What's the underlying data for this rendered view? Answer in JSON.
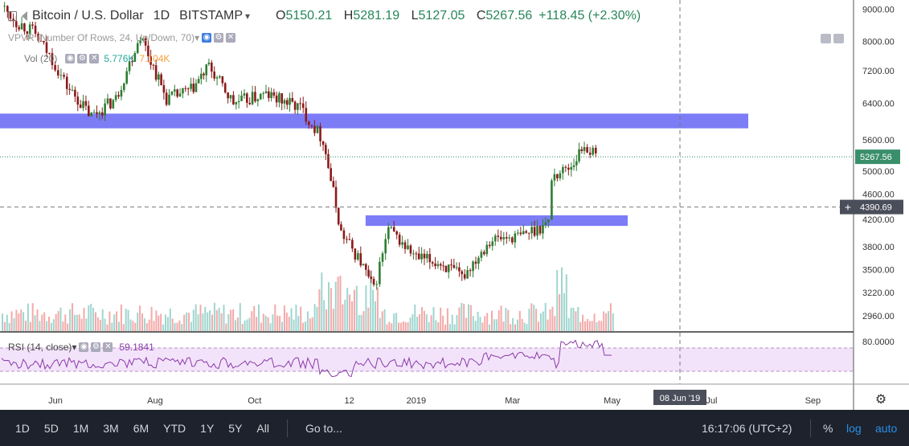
{
  "legend": {
    "symbol": "Bitcoin / U.S. Dollar",
    "interval": "1D",
    "exchange": "BITSTAMP",
    "open_label": "O",
    "open": "5150.21",
    "high_label": "H",
    "high": "5281.19",
    "low_label": "L",
    "low": "5127.05",
    "close_label": "C",
    "close": "5267.56",
    "change": "+118.45 (+2.30%)"
  },
  "indicators": {
    "vpvr_label": "VPVR (Number Of Rows, 24, Up/Down, 70)",
    "vol_label": "Vol (20)",
    "vol_values": "5.776K",
    "vol_ma": "7.104K"
  },
  "rsi": {
    "label": "RSI (14, close)",
    "value": "59.1841"
  },
  "colors": {
    "up": "#26a69a",
    "down": "#ef5350",
    "candle_up": "#2e7d32",
    "candle_down": "#8b1a1a",
    "zone": "#6e6ef5",
    "rsi_line": "#8a3aa9",
    "rsi_band": "#f3e3fa"
  },
  "chart_data": {
    "type": "candlestick",
    "price_axis_ticks": [
      "9000.00",
      "8000.00",
      "7200.00",
      "6400.00",
      "5600.00",
      "5000.00",
      "4600.00",
      "4200.00",
      "3800.00",
      "3500.00",
      "3220.00",
      "2960.00"
    ],
    "price_scale": "log",
    "time_axis_ticks": [
      "Jun",
      "Aug",
      "Oct",
      "12",
      "2019",
      "Mar",
      "May",
      "Jul",
      "Sep"
    ],
    "rsi_axis_ticks": [
      "80.0000"
    ],
    "last_price_label": "5267.56",
    "crosshair_price": "4390.69",
    "crosshair_date": "08 Jun '19",
    "resistance_zones": [
      {
        "from_price": 5840,
        "to_price": 6160,
        "x_start": "May 2018",
        "x_end": "Jul 2019"
      },
      {
        "from_price": 4100,
        "to_price": 4260,
        "x_start": "Dec 2018",
        "x_end": "Jun 2019"
      }
    ],
    "closes_approx": [
      {
        "date": "2018-05-01",
        "close": 9100
      },
      {
        "date": "2018-05-10",
        "close": 8600
      },
      {
        "date": "2018-05-20",
        "close": 8300
      },
      {
        "date": "2018-06-01",
        "close": 7500
      },
      {
        "date": "2018-06-10",
        "close": 6800
      },
      {
        "date": "2018-06-25",
        "close": 6100
      },
      {
        "date": "2018-07-10",
        "close": 6500
      },
      {
        "date": "2018-07-25",
        "close": 8200
      },
      {
        "date": "2018-08-10",
        "close": 6500
      },
      {
        "date": "2018-08-25",
        "close": 6700
      },
      {
        "date": "2018-09-05",
        "close": 7300
      },
      {
        "date": "2018-09-20",
        "close": 6400
      },
      {
        "date": "2018-10-10",
        "close": 6600
      },
      {
        "date": "2018-10-31",
        "close": 6300
      },
      {
        "date": "2018-11-14",
        "close": 5600
      },
      {
        "date": "2018-11-25",
        "close": 4000
      },
      {
        "date": "2018-12-07",
        "close": 3600
      },
      {
        "date": "2018-12-15",
        "close": 3250
      },
      {
        "date": "2018-12-24",
        "close": 4050
      },
      {
        "date": "2019-01-10",
        "close": 3650
      },
      {
        "date": "2019-01-25",
        "close": 3580
      },
      {
        "date": "2019-02-07",
        "close": 3400
      },
      {
        "date": "2019-02-24",
        "close": 3900
      },
      {
        "date": "2019-03-15",
        "close": 3950
      },
      {
        "date": "2019-04-01",
        "close": 4150
      },
      {
        "date": "2019-04-03",
        "close": 4900
      },
      {
        "date": "2019-04-15",
        "close": 5100
      },
      {
        "date": "2019-04-23",
        "close": 5500
      },
      {
        "date": "2019-04-30",
        "close": 5267.56
      }
    ]
  },
  "bottom_bar": {
    "ranges": [
      "1D",
      "5D",
      "1M",
      "3M",
      "6M",
      "YTD",
      "1Y",
      "5Y",
      "All"
    ],
    "goto": "Go to...",
    "time": "16:17:06 (UTC+2)",
    "percent": "%",
    "log": "log",
    "auto": "auto"
  }
}
